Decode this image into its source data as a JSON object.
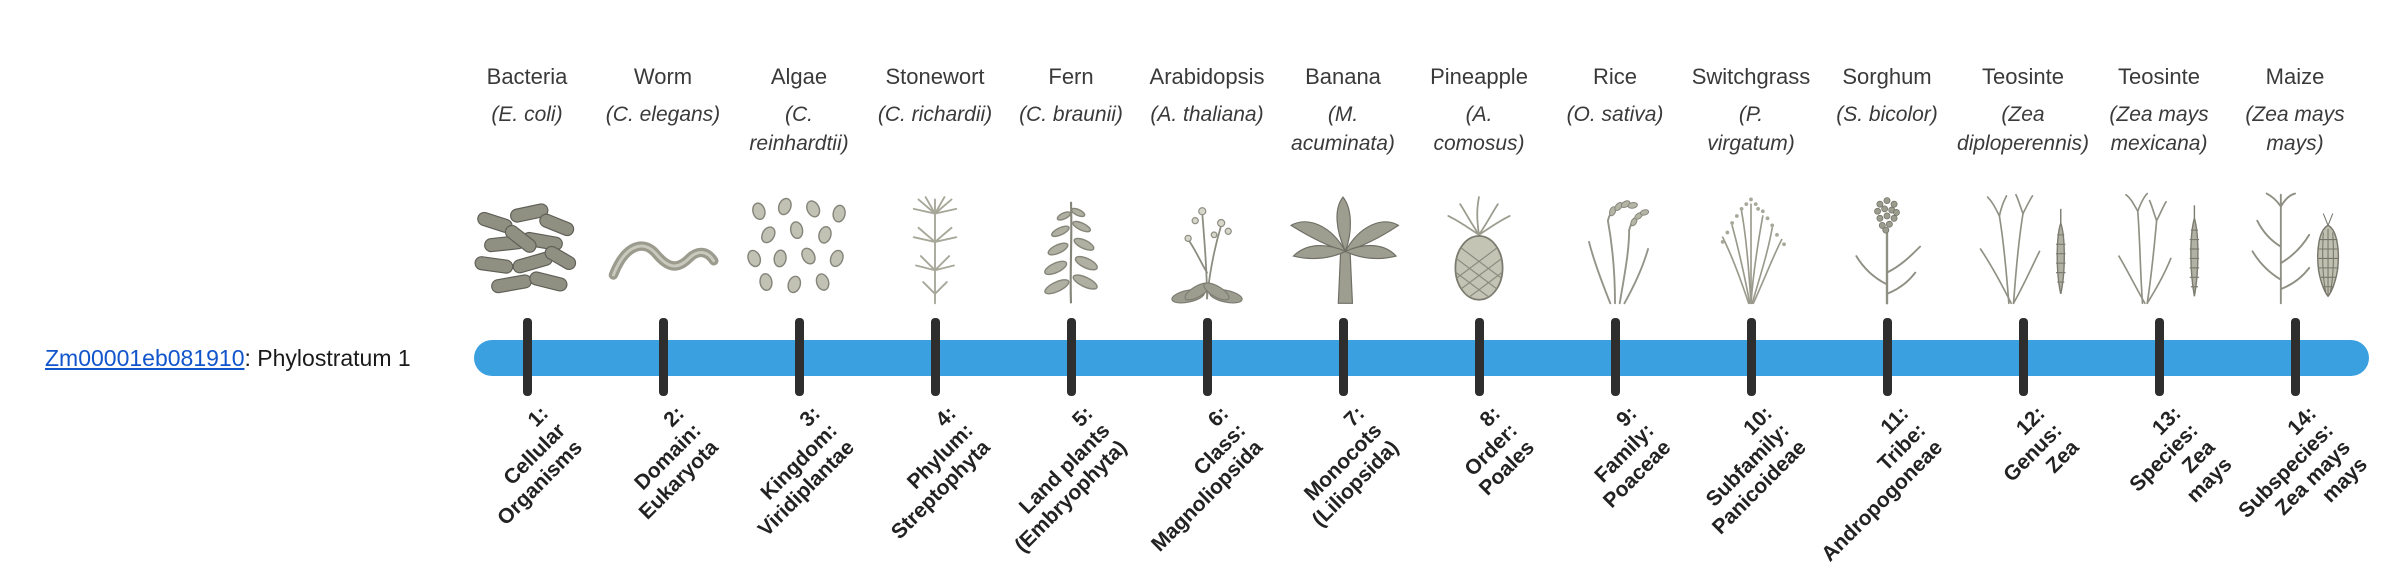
{
  "gene": {
    "id": "Zm00001eb081910",
    "suffix": ": Phylostratum 1"
  },
  "timeline": {
    "bar_color": "#3AA0E0",
    "tick_color": "#2E2E2E",
    "link_color": "#1155CC"
  },
  "organisms": [
    {
      "name": "Bacteria",
      "species": "(E. coli)",
      "icon": "bacteria-icon",
      "stratum": "1:\nCellular\nOrganisms"
    },
    {
      "name": "Worm",
      "species": "(C. elegans)",
      "icon": "worm-icon",
      "stratum": "2:\nDomain:\nEukaryota"
    },
    {
      "name": "Algae",
      "species": "(C.\nreinhardtii)",
      "icon": "algae-icon",
      "stratum": "3:\nKingdom:\nViridiplantae"
    },
    {
      "name": "Stonewort",
      "species": "(C. richardii)",
      "icon": "stonewort-icon",
      "stratum": "4:\nPhylum:\nStreptophyta"
    },
    {
      "name": "Fern",
      "species": "(C. braunii)",
      "icon": "fern-icon",
      "stratum": "5:\nLand plants\n(Embryophyta)"
    },
    {
      "name": "Arabidopsis",
      "species": "(A. thaliana)",
      "icon": "arabidopsis-icon",
      "stratum": "6:\nClass:\nMagnoliopsida"
    },
    {
      "name": "Banana",
      "species": "(M.\nacuminata)",
      "icon": "banana-icon",
      "stratum": "7:\nMonocots\n(Liliopsida)"
    },
    {
      "name": "Pineapple",
      "species": "(A.\ncomosus)",
      "icon": "pineapple-icon",
      "stratum": "8:\nOrder:\nPoales"
    },
    {
      "name": "Rice",
      "species": "(O. sativa)",
      "icon": "rice-icon",
      "stratum": "9:\nFamily:\nPoaceae"
    },
    {
      "name": "Switchgrass",
      "species": "(P.\nvirgatum)",
      "icon": "switchgrass-icon",
      "stratum": "10:\nSubfamily:\nPanicoideae"
    },
    {
      "name": "Sorghum",
      "species": "(S. bicolor)",
      "icon": "sorghum-icon",
      "stratum": "11:\nTribe:\nAndropogoneae"
    },
    {
      "name": "Teosinte",
      "species": "(Zea\ndiploperennis)",
      "icon": "teosinte-diploperennis-icon",
      "stratum": "12:\nGenus:\nZea"
    },
    {
      "name": "Teosinte",
      "species": "(Zea mays\nmexicana)",
      "icon": "teosinte-mexicana-icon",
      "stratum": "13:\nSpecies:\nZea\nmays"
    },
    {
      "name": "Maize",
      "species": "(Zea mays\nmays)",
      "icon": "maize-icon",
      "stratum": "14:\nSubspecies:\nZea mays\nmays"
    }
  ]
}
